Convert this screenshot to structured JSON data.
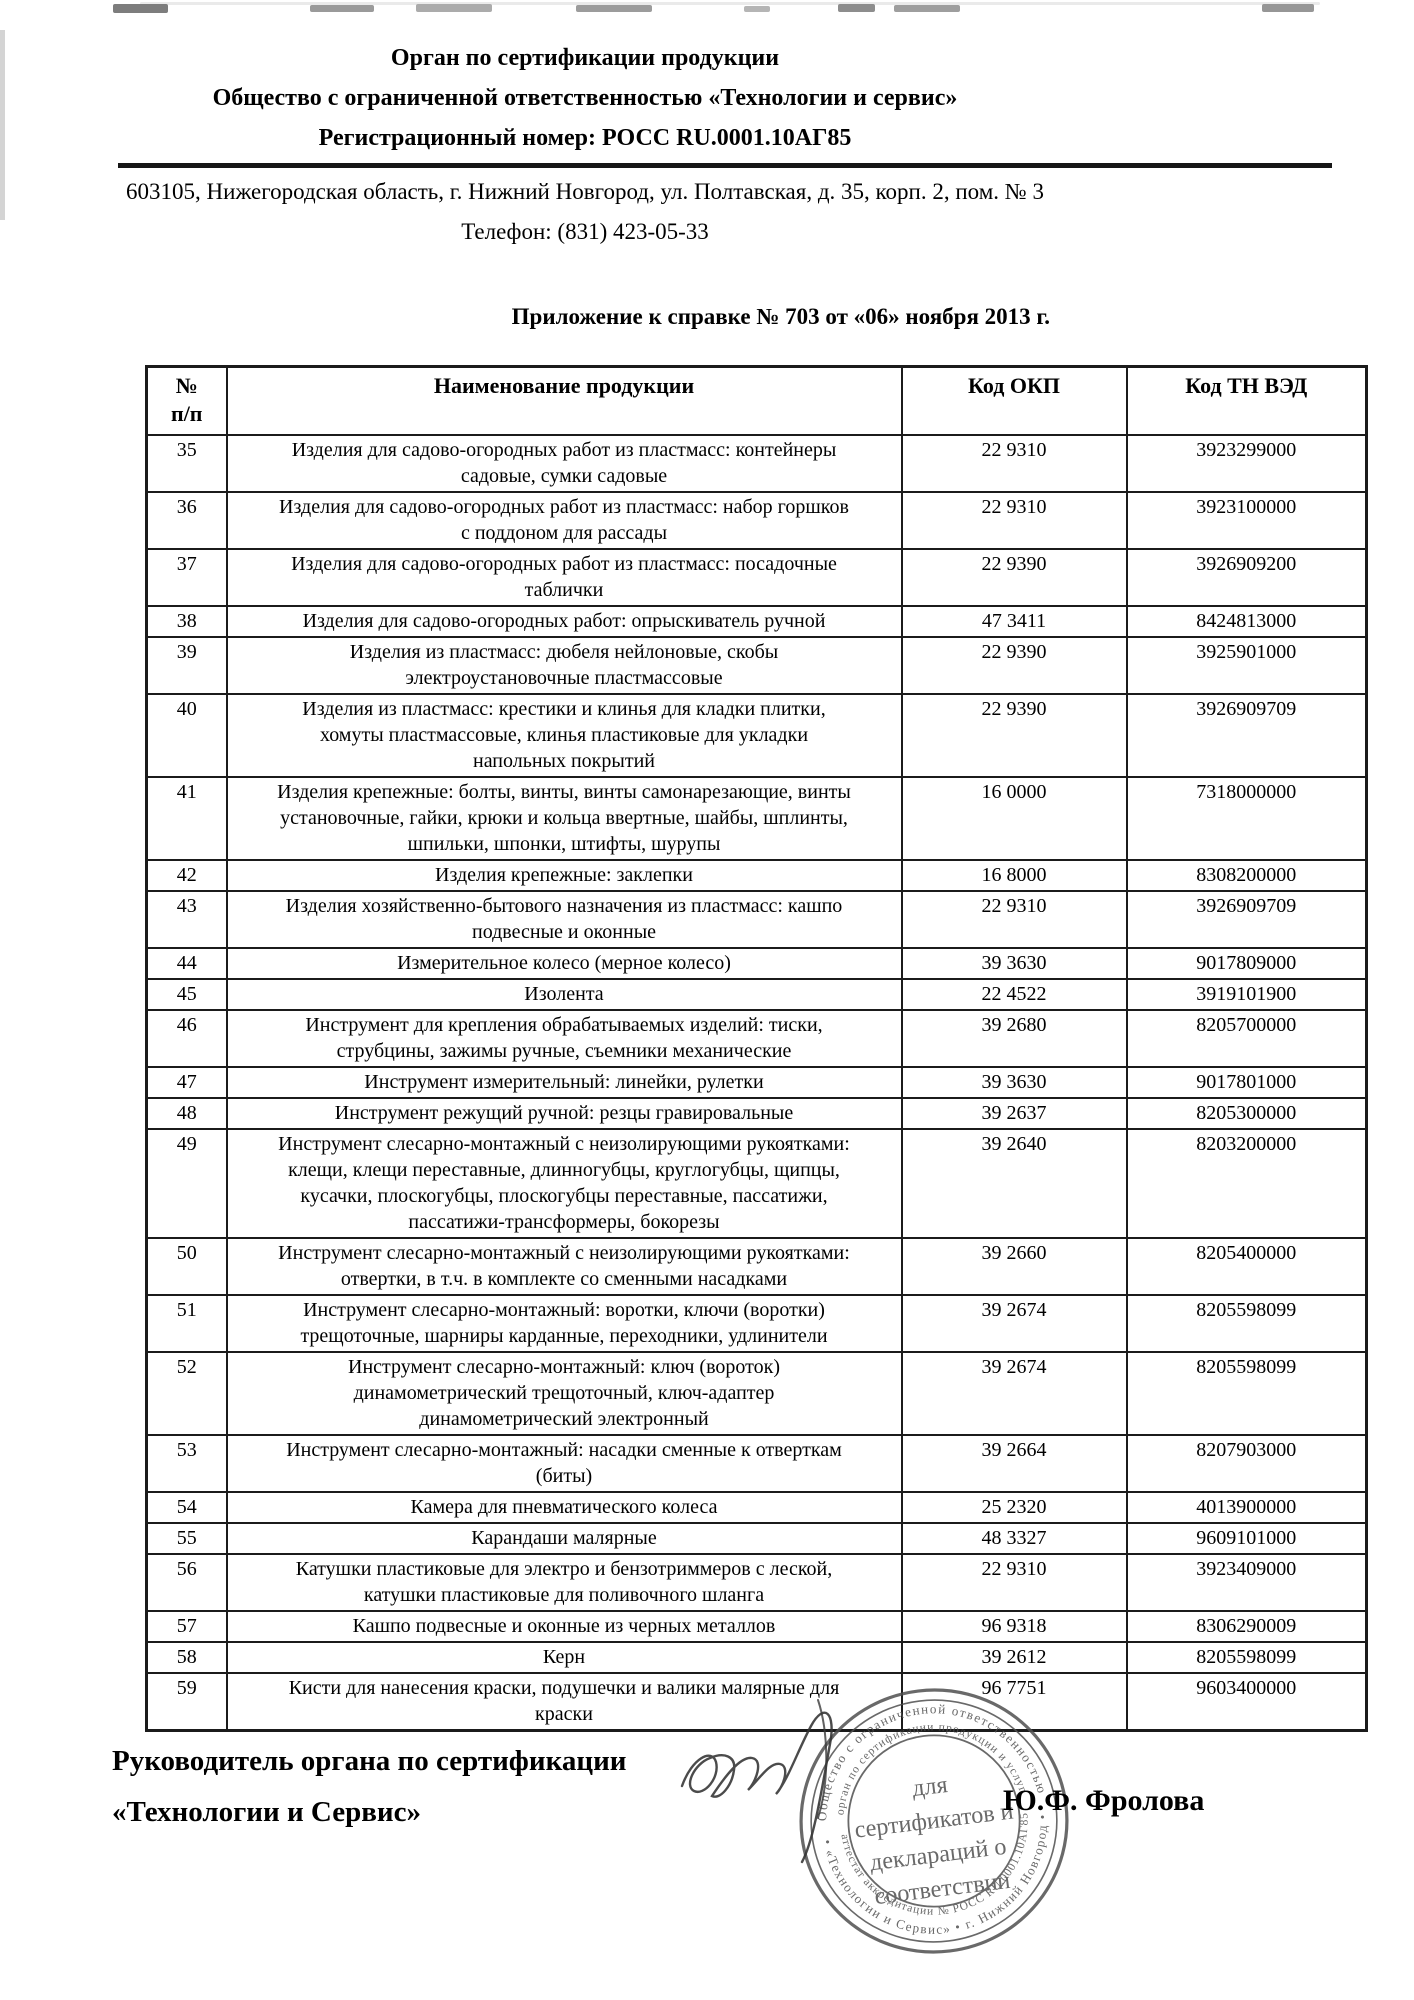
{
  "document": {
    "org_title": "Орган по сертификации продукции",
    "org_name": "Общество с ограниченной ответственностью «Технологии и сервис»",
    "reg_number": "Регистрационный номер: РОСС RU.0001.10АГ85",
    "address": "603105, Нижегородская область, г. Нижний Новгород, ул. Полтавская, д. 35, корп. 2, пом. № 3",
    "phone": "Телефон: (831) 423-05-33",
    "appendix": "Приложение к справке № 703 от «06» ноября 2013 г."
  },
  "table": {
    "header": {
      "col_num_line1": "№",
      "col_num_line2": "п/п",
      "col_name": "Наименование продукции",
      "col_okp": "Код ОКП",
      "col_tnved": "Код ТН ВЭД"
    },
    "rows": [
      {
        "num": "35",
        "name": "Изделия для садово-огородных работ из пластмасс: контейнеры садовые, сумки садовые",
        "okp": "22 9310",
        "tnved": "3923299000"
      },
      {
        "num": "36",
        "name": "Изделия для садово-огородных работ из пластмасс: набор горшков с поддоном для рассады",
        "okp": "22 9310",
        "tnved": "3923100000"
      },
      {
        "num": "37",
        "name": "Изделия для садово-огородных работ из пластмасс: посадочные таблички",
        "okp": "22 9390",
        "tnved": "3926909200"
      },
      {
        "num": "38",
        "name": "Изделия для садово-огородных работ: опрыскиватель ручной",
        "okp": "47 3411",
        "tnved": "8424813000"
      },
      {
        "num": "39",
        "name": "Изделия из пластмасс: дюбеля нейлоновые, скобы электроустановочные пластмассовые",
        "okp": "22 9390",
        "tnved": "3925901000"
      },
      {
        "num": "40",
        "name": "Изделия из пластмасс: крестики и клинья для кладки плитки, хомуты пластмассовые, клинья пластиковые для укладки напольных покрытий",
        "okp": "22 9390",
        "tnved": "3926909709"
      },
      {
        "num": "41",
        "name": "Изделия крепежные: болты, винты, винты самонарезающие, винты установочные, гайки, крюки и кольца ввертные, шайбы, шплинты, шпильки, шпонки, штифты, шурупы",
        "okp": "16 0000",
        "tnved": "7318000000"
      },
      {
        "num": "42",
        "name": "Изделия крепежные: заклепки",
        "okp": "16 8000",
        "tnved": "8308200000"
      },
      {
        "num": "43",
        "name": "Изделия хозяйственно-бытового назначения из пластмасс: кашпо подвесные и оконные",
        "okp": "22 9310",
        "tnved": "3926909709"
      },
      {
        "num": "44",
        "name": "Измерительное колесо (мерное колесо)",
        "okp": "39 3630",
        "tnved": "9017809000"
      },
      {
        "num": "45",
        "name": "Изолента",
        "okp": "22 4522",
        "tnved": "3919101900"
      },
      {
        "num": "46",
        "name": "Инструмент для крепления обрабатываемых изделий: тиски, струбцины, зажимы ручные, съемники механические",
        "okp": "39 2680",
        "tnved": "8205700000"
      },
      {
        "num": "47",
        "name": "Инструмент измерительный: линейки, рулетки",
        "okp": "39 3630",
        "tnved": "9017801000"
      },
      {
        "num": "48",
        "name": "Инструмент режущий ручной: резцы гравировальные",
        "okp": "39 2637",
        "tnved": "8205300000"
      },
      {
        "num": "49",
        "name": "Инструмент слесарно-монтажный с неизолирующими рукоятками: клещи, клещи переставные, длинногубцы, круглогубцы, щипцы, кусачки, плоскогубцы, плоскогубцы переставные, пассатижи, пассатижи-трансформеры, бокорезы",
        "okp": "39 2640",
        "tnved": "8203200000"
      },
      {
        "num": "50",
        "name": "Инструмент слесарно-монтажный с неизолирующими рукоятками: отвертки, в т.ч. в комплекте со сменными насадками",
        "okp": "39 2660",
        "tnved": "8205400000"
      },
      {
        "num": "51",
        "name": "Инструмент слесарно-монтажный: воротки, ключи (воротки) трещоточные, шарниры карданные, переходники, удлинители",
        "okp": "39 2674",
        "tnved": "8205598099"
      },
      {
        "num": "52",
        "name": "Инструмент слесарно-монтажный: ключ (вороток) динамометрический трещоточный, ключ-адаптер динамометрический электронный",
        "okp": "39 2674",
        "tnved": "8205598099"
      },
      {
        "num": "53",
        "name": "Инструмент слесарно-монтажный: насадки сменные к отверткам (биты)",
        "okp": "39 2664",
        "tnved": "8207903000"
      },
      {
        "num": "54",
        "name": "Камера для пневматического колеса",
        "okp": "25 2320",
        "tnved": "4013900000"
      },
      {
        "num": "55",
        "name": "Карандаши малярные",
        "okp": "48 3327",
        "tnved": "9609101000"
      },
      {
        "num": "56",
        "name": "Катушки пластиковые для электро и бензотриммеров с леской, катушки пластиковые для поливочного шланга",
        "okp": "22 9310",
        "tnved": "3923409000"
      },
      {
        "num": "57",
        "name": "Кашпо подвесные и оконные из черных металлов",
        "okp": "96 9318",
        "tnved": "8306290009"
      },
      {
        "num": "58",
        "name": "Керн",
        "okp": "39 2612",
        "tnved": "8205598099"
      },
      {
        "num": "59",
        "name": "Кисти для нанесения краски, подушечки и валики малярные для краски",
        "okp": "96 7751",
        "tnved": "9603400000"
      }
    ]
  },
  "footer": {
    "signatory_role_line1": "Руководитель органа по сертификации",
    "signatory_role_line2": "«Технологии и Сервис»",
    "signatory_name": "Ю.Ф. Фролова"
  },
  "stamp": {
    "ring_outer_top": "Общество с ограниченной ответственностью",
    "ring_outer_bottom": "• «Технологии и Сервис» • г. Нижний Новгород •",
    "ring_inner_top": "орган по сертификации продукции и услуг",
    "ring_inner_bottom": "аттестат аккредитации № РОСС RU.0001.10АГ85",
    "center_line1": "для",
    "center_line2": "сертификатов и",
    "center_line3": "деклараций о",
    "center_line4": "соответствии"
  }
}
